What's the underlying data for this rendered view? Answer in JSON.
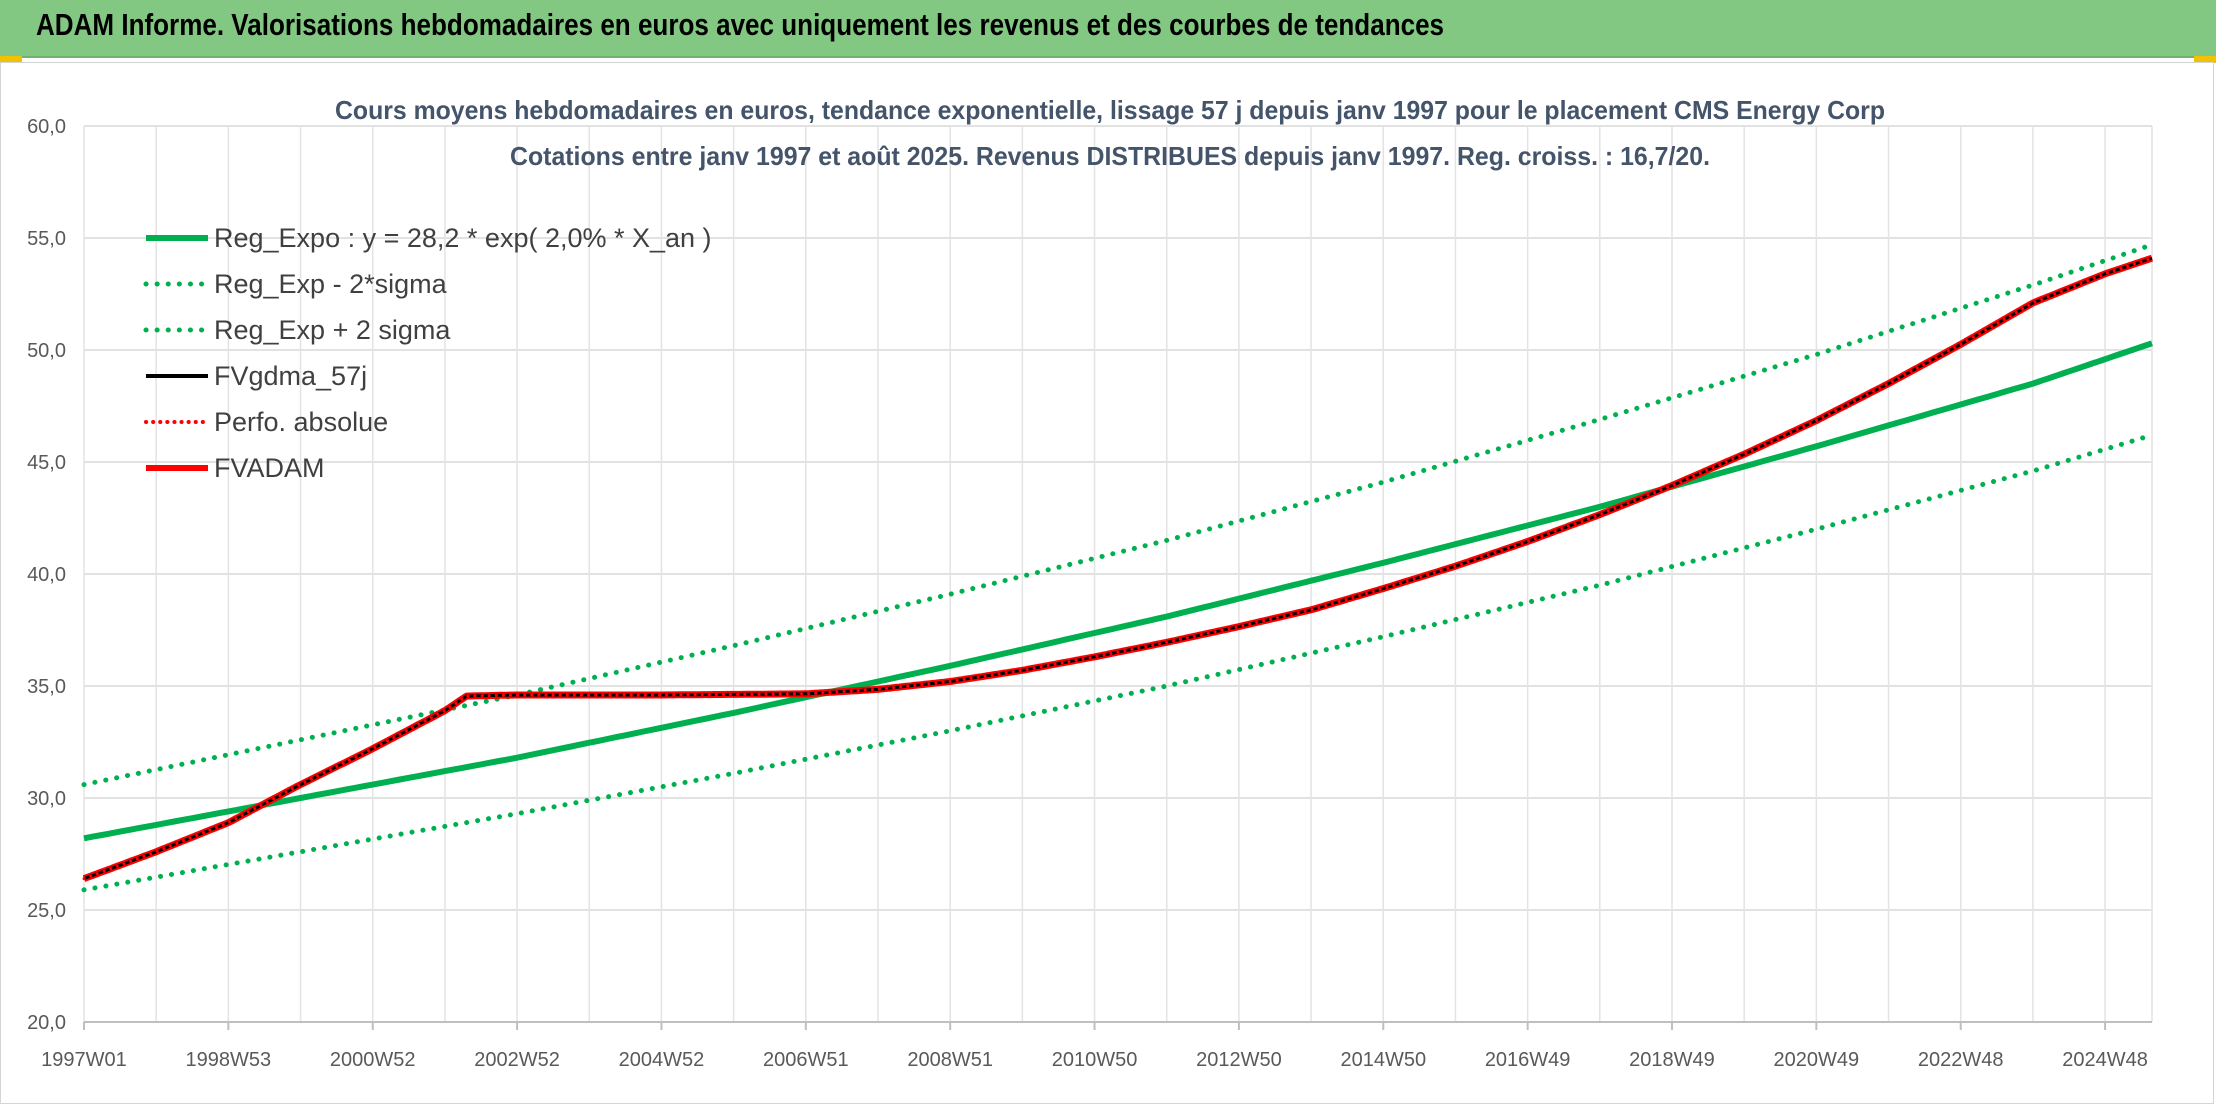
{
  "banner": {
    "title": "ADAM Informe. Valorisations hebdomadaires en euros avec uniquement les revenus et des courbes de tendances"
  },
  "chart_data": {
    "type": "line",
    "title": "Cours moyens hebdomadaires en euros, tendance exponentielle, lissage 57 j depuis janv 1997 pour le placement CMS Energy Corp",
    "subtitle": "Cotations entre janv 1997 et août 2025. Revenus DISTRIBUES depuis janv 1997. Reg. croiss. : 16,7/20.",
    "xlabel": "",
    "ylabel": "",
    "ylim": [
      20,
      60
    ],
    "y_ticks": [
      "20,0",
      "25,0",
      "30,0",
      "35,0",
      "40,0",
      "45,0",
      "50,0",
      "55,0",
      "60,0"
    ],
    "x_range": [
      1997.0,
      2025.65
    ],
    "x_tick_labels": [
      "1997W01",
      "1998W53",
      "2000W52",
      "2002W52",
      "2004W52",
      "2006W51",
      "2008W51",
      "2010W50",
      "2012W50",
      "2014W50",
      "2016W49",
      "2018W49",
      "2020W49",
      "2022W48",
      "2024W48"
    ],
    "x_tick_positions": [
      1997.0,
      1999.0,
      2001.0,
      2003.0,
      2005.0,
      2007.0,
      2009.0,
      2011.0,
      2013.0,
      2015.0,
      2017.0,
      2019.0,
      2021.0,
      2023.0,
      2025.0
    ],
    "x_minor_step": 1,
    "grid": true,
    "legend_position": "top-left",
    "series": [
      {
        "name": "Reg_Expo : y = 28,2 * exp( 2,0% *  X_an )",
        "color": "#00b050",
        "style": "solid",
        "width": 6,
        "x": [
          1997.0,
          2000.0,
          2003.0,
          2006.0,
          2009.0,
          2012.0,
          2015.0,
          2018.0,
          2021.0,
          2024.0,
          2025.65
        ],
        "y": [
          28.2,
          30.0,
          31.8,
          33.8,
          35.9,
          38.1,
          40.5,
          43.0,
          45.7,
          48.5,
          50.3
        ]
      },
      {
        "name": "Reg_Exp - 2*sigma",
        "color": "#00b050",
        "style": "dotted",
        "width": 5,
        "x": [
          1997.0,
          2000.0,
          2003.0,
          2006.0,
          2009.0,
          2012.0,
          2015.0,
          2018.0,
          2021.0,
          2024.0,
          2025.65
        ],
        "y": [
          25.9,
          27.6,
          29.3,
          31.1,
          33.0,
          35.0,
          37.2,
          39.5,
          42.0,
          44.6,
          46.2
        ]
      },
      {
        "name": "Reg_Exp + 2 sigma",
        "color": "#00b050",
        "style": "dotted",
        "width": 5,
        "x": [
          1997.0,
          2000.0,
          2003.0,
          2006.0,
          2009.0,
          2012.0,
          2015.0,
          2018.0,
          2021.0,
          2024.0,
          2025.65
        ],
        "y": [
          30.6,
          32.6,
          34.6,
          36.8,
          39.1,
          41.5,
          44.1,
          46.9,
          49.8,
          52.9,
          54.7
        ]
      },
      {
        "name": "FVgdma_57j",
        "color": "#000000",
        "style": "solid",
        "width": 3,
        "x": [
          1997.0,
          1998.0,
          1999.0,
          2000.0,
          2001.0,
          2002.0,
          2002.3,
          2003.0,
          2005.0,
          2007.0,
          2008.0,
          2009.0,
          2010.0,
          2011.0,
          2012.0,
          2013.0,
          2014.0,
          2015.0,
          2016.0,
          2017.0,
          2018.0,
          2019.0,
          2020.0,
          2021.0,
          2022.0,
          2023.0,
          2024.0,
          2025.0,
          2025.65
        ],
        "y": [
          26.4,
          27.6,
          28.9,
          30.6,
          32.2,
          33.9,
          34.55,
          34.6,
          34.6,
          34.65,
          34.85,
          35.2,
          35.7,
          36.3,
          36.95,
          37.65,
          38.4,
          39.35,
          40.35,
          41.45,
          42.65,
          43.95,
          45.35,
          46.85,
          48.5,
          50.25,
          52.1,
          53.4,
          54.1
        ]
      },
      {
        "name": "Perfo. absolue",
        "color": "#ff0000",
        "style": "dotted",
        "width": 3,
        "x": [
          1997.0,
          1998.0,
          1999.0,
          2000.0,
          2001.0,
          2002.0,
          2002.3,
          2003.0,
          2005.0,
          2007.0,
          2008.0,
          2009.0,
          2010.0,
          2011.0,
          2012.0,
          2013.0,
          2014.0,
          2015.0,
          2016.0,
          2017.0,
          2018.0,
          2019.0,
          2020.0,
          2021.0,
          2022.0,
          2023.0,
          2024.0,
          2025.0,
          2025.65
        ],
        "y": [
          26.4,
          27.6,
          28.9,
          30.6,
          32.2,
          33.9,
          34.55,
          34.6,
          34.6,
          34.65,
          34.85,
          35.2,
          35.7,
          36.3,
          36.95,
          37.65,
          38.4,
          39.35,
          40.35,
          41.45,
          42.65,
          43.95,
          45.35,
          46.85,
          48.5,
          50.25,
          52.1,
          53.4,
          54.1
        ]
      },
      {
        "name": "FVADAM",
        "color": "#ff0000",
        "style": "solid",
        "width": 7,
        "x": [
          1997.0,
          1998.0,
          1999.0,
          2000.0,
          2001.0,
          2002.0,
          2002.3,
          2003.0,
          2005.0,
          2007.0,
          2008.0,
          2009.0,
          2010.0,
          2011.0,
          2012.0,
          2013.0,
          2014.0,
          2015.0,
          2016.0,
          2017.0,
          2018.0,
          2019.0,
          2020.0,
          2021.0,
          2022.0,
          2023.0,
          2024.0,
          2025.0,
          2025.65
        ],
        "y": [
          26.4,
          27.6,
          28.9,
          30.6,
          32.2,
          33.9,
          34.55,
          34.6,
          34.6,
          34.65,
          34.85,
          35.2,
          35.7,
          36.3,
          36.95,
          37.65,
          38.4,
          39.35,
          40.35,
          41.45,
          42.65,
          43.95,
          45.35,
          46.85,
          48.5,
          50.25,
          52.1,
          53.4,
          54.1
        ]
      }
    ]
  }
}
